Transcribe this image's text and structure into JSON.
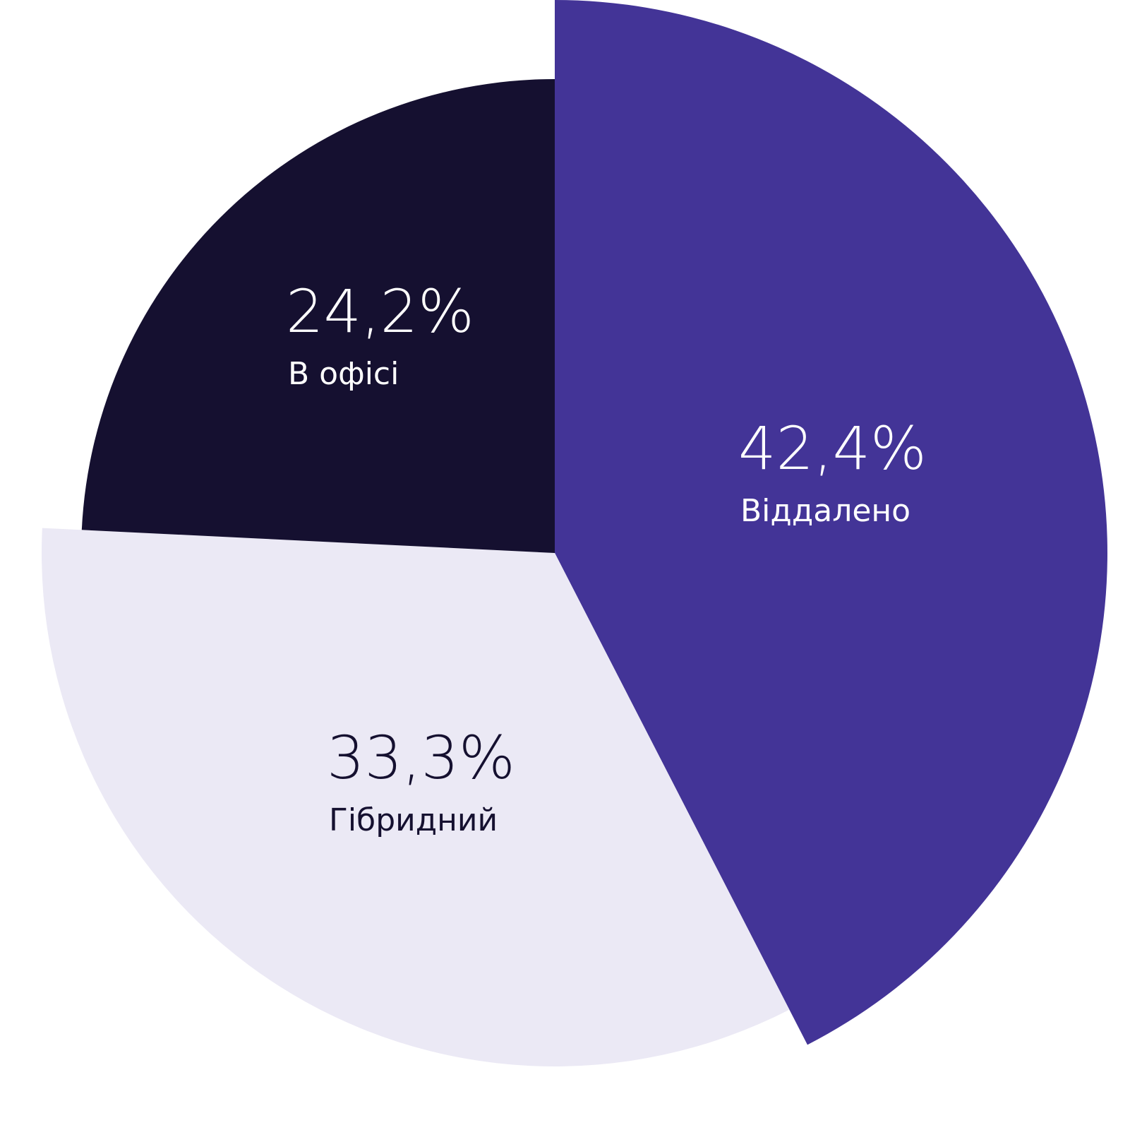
{
  "chart_data": {
    "type": "pie",
    "categories": [
      "Віддалено",
      "Гібридний",
      "В офісі"
    ],
    "values": [
      42.4,
      33.3,
      24.2
    ],
    "value_labels": [
      "42,4%",
      "33,3%",
      "24,2%"
    ],
    "colors": [
      "#433497",
      "#ebe9f5",
      "#151030"
    ]
  }
}
